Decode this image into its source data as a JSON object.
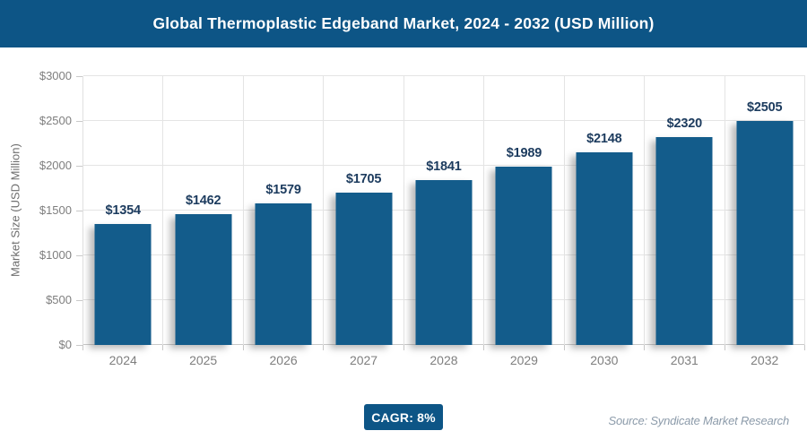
{
  "header": {
    "title": "Global Thermoplastic Edgeband Market, 2024 - 2032 (USD Million)"
  },
  "chart_data": {
    "type": "bar",
    "title": "Global Thermoplastic Edgeband Market, 2024 - 2032 (USD Million)",
    "categories": [
      "2024",
      "2025",
      "2026",
      "2027",
      "2028",
      "2029",
      "2030",
      "2031",
      "2032"
    ],
    "values": [
      1354,
      1462,
      1579,
      1705,
      1841,
      1989,
      2148,
      2320,
      2505
    ],
    "bar_labels": [
      "$1354",
      "$1462",
      "$1579",
      "$1705",
      "$1841",
      "$1989",
      "$2148",
      "$2320",
      "$2505"
    ],
    "xlabel": "",
    "ylabel": "Market Size (USD Million)",
    "ylim": [
      0,
      3000
    ],
    "ytick_step": 500,
    "ytick_labels": [
      "$0",
      "$500",
      "$1000",
      "$1500",
      "$2000",
      "$2500",
      "$3000"
    ],
    "grid": true,
    "legend": "none"
  },
  "footer": {
    "cagr_label": "CAGR: 8%",
    "source": "Source: Syndicate Market Research"
  },
  "colors": {
    "header_bg": "#0D5586",
    "bar": "#135C8B",
    "value_label": "#1C3B5E",
    "axis_text": "#7E7E7E",
    "grid_line": "#E4E4E4",
    "axis_line": "#C9C9C9",
    "source_text": "#8C9BAA"
  }
}
